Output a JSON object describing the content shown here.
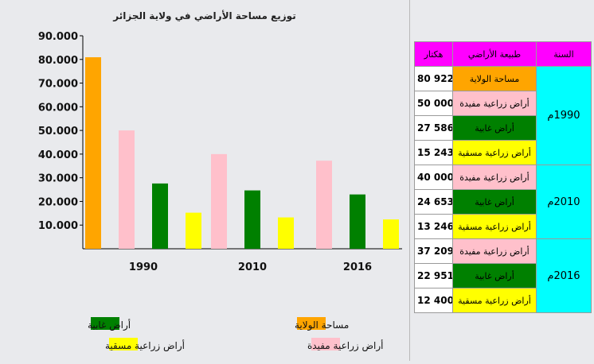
{
  "chart_data": {
    "type": "bar",
    "title": "توزيع مساحة الأراضي في ولاية الجزائر",
    "categories": [
      "1990",
      "2010",
      "2016"
    ],
    "y_ticks": [
      "90.000",
      "80.000",
      "70.000",
      "60.000",
      "50.000",
      "40.000",
      "30.000",
      "20.000",
      "10.000"
    ],
    "ylim": [
      0,
      90000
    ],
    "grid": false,
    "series": [
      {
        "name": "مساحة الولاية",
        "color": "#ffa500",
        "values": [
          80922,
          null,
          null
        ]
      },
      {
        "name": "أراض زراعية مفيدة",
        "color": "#ffc0cb",
        "values": [
          50000,
          40000,
          37209
        ]
      },
      {
        "name": "أراض غابية",
        "color": "#008000",
        "values": [
          27586,
          24653,
          22951
        ]
      },
      {
        "name": "أراض زراعية مسقية",
        "color": "#ffff00",
        "values": [
          15243,
          13246,
          12400
        ]
      }
    ],
    "legend": [
      {
        "label": "مساحة الولاية",
        "color": "#ffa500"
      },
      {
        "label": "أراض غابية",
        "color": "#008000"
      },
      {
        "label": "أراض زراعية مفيدة",
        "color": "#ffc0cb"
      },
      {
        "label": "أراض زراعية مسقية",
        "color": "#ffff00"
      }
    ]
  },
  "table": {
    "headers": {
      "year": "السنة",
      "type": "طبيعة الأراضي",
      "unit": "هكتار"
    },
    "groups": [
      {
        "year": "1990م",
        "rows": [
          {
            "type": "مساحة الولاية",
            "value": "80 922",
            "color": "#ffa500"
          },
          {
            "type": "أراض زراعية مفيدة",
            "value": "50 000",
            "color": "#ffc0cb"
          },
          {
            "type": "أراض غابية",
            "value": "27 586",
            "color": "#008000"
          },
          {
            "type": "أراض زراعية مسقية",
            "value": "15 243",
            "color": "#ffff00"
          }
        ]
      },
      {
        "year": "2010م",
        "rows": [
          {
            "type": "أراض زراعية مفيدة",
            "value": "40 000",
            "color": "#ffc0cb"
          },
          {
            "type": "أراض غابية",
            "value": "24 653",
            "color": "#008000"
          },
          {
            "type": "أراض زراعية مسقية",
            "value": "13 246",
            "color": "#ffff00"
          }
        ]
      },
      {
        "year": "2016م",
        "rows": [
          {
            "type": "أراض زراعية مفيدة",
            "value": "37 209",
            "color": "#ffc0cb"
          },
          {
            "type": "أراض غابية",
            "value": "22 951",
            "color": "#008000"
          },
          {
            "type": "أراض زراعية مسقية",
            "value": "12 400",
            "color": "#ffff00"
          }
        ]
      }
    ]
  }
}
